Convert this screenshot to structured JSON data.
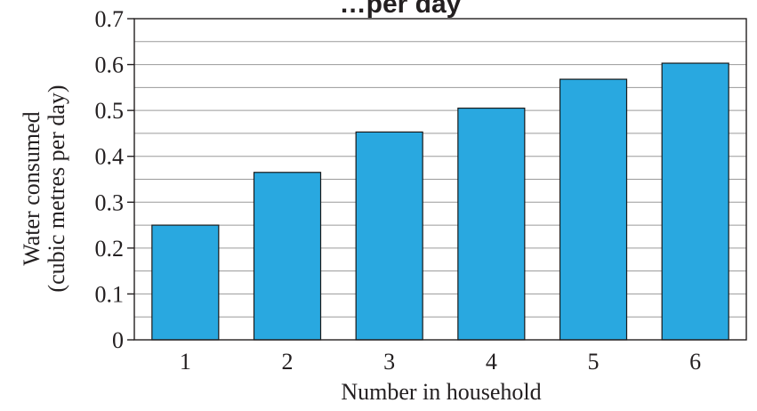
{
  "chart_data": {
    "type": "bar",
    "title": "…per day",
    "xlabel": "Number in household",
    "ylabel_lines": [
      "Water consumed",
      "(cubic metres per day)"
    ],
    "categories": [
      "1",
      "2",
      "3",
      "4",
      "5",
      "6"
    ],
    "values": [
      0.25,
      0.365,
      0.453,
      0.505,
      0.568,
      0.603
    ],
    "ylim": [
      0,
      0.7
    ],
    "yticks": [
      0,
      0.1,
      0.2,
      0.3,
      0.4,
      0.5,
      0.6,
      0.7
    ],
    "ytick_labels": [
      "0",
      "0.1",
      "0.2",
      "0.3",
      "0.4",
      "0.5",
      "0.6",
      "0.7"
    ],
    "minor_grid_step": 0.05,
    "grid": true,
    "legend": "none",
    "colors": {
      "bar": "#29a8e0",
      "bar_edge": "#1a1a1a",
      "grid": "#9a9a9a",
      "axis": "#231f20",
      "text": "#231f20"
    }
  }
}
